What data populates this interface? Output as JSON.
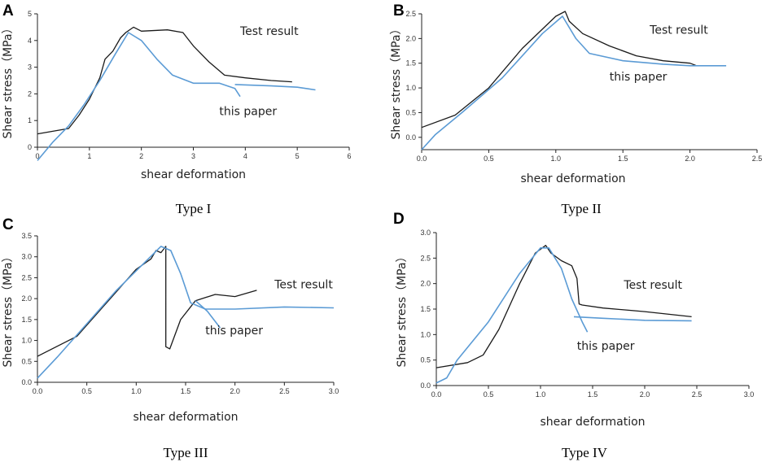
{
  "colors": {
    "test": "#1a1a1a",
    "paper": "#5b9bd5",
    "axis": "#222222"
  },
  "chart_data": [
    {
      "type": "line",
      "panel": "A",
      "caption": "Type I",
      "xlabel": "shear deformation",
      "ylabel": "Shear stress（MPa）",
      "xlim": [
        0,
        6
      ],
      "ylim": [
        0,
        5
      ],
      "xticks": [
        0,
        1,
        2,
        3,
        4,
        5,
        6
      ],
      "yticks": [
        0,
        1,
        2,
        3,
        4,
        5
      ],
      "xtick_labels": [
        "0",
        "1",
        "2",
        "3",
        "4",
        "5",
        "6"
      ],
      "ytick_labels": [
        "0",
        "1",
        "2",
        "3",
        "4",
        "5"
      ],
      "annotations": [
        {
          "text": "Test result",
          "x": 3.9,
          "y": 4.2
        },
        {
          "text": "this paper",
          "x": 3.5,
          "y": 1.2
        }
      ],
      "series": [
        {
          "name": "Test result",
          "x": [
            0,
            0.6,
            0.8,
            1.0,
            1.2,
            1.3,
            1.45,
            1.6,
            1.7,
            1.85,
            2.0,
            2.5,
            2.8,
            3.0,
            3.3,
            3.6,
            4.0,
            4.5,
            4.9
          ],
          "y": [
            0.5,
            0.7,
            1.2,
            1.8,
            2.6,
            3.3,
            3.6,
            4.1,
            4.3,
            4.5,
            4.35,
            4.4,
            4.3,
            3.8,
            3.2,
            2.7,
            2.6,
            2.5,
            2.45
          ]
        },
        {
          "name": "this paper",
          "x": [
            0,
            0.3,
            0.6,
            0.9,
            1.2,
            1.5,
            1.75,
            2.0,
            2.3,
            2.6,
            3.0,
            3.5,
            3.8,
            3.9
          ],
          "y": [
            -0.5,
            0.2,
            0.8,
            1.6,
            2.5,
            3.5,
            4.3,
            4.0,
            3.3,
            2.7,
            2.4,
            2.4,
            2.2,
            1.9
          ]
        },
        {
          "name": "this paper",
          "x": [
            3.8,
            4.5,
            5.0,
            5.35
          ],
          "y": [
            2.35,
            2.3,
            2.25,
            2.15
          ]
        }
      ]
    },
    {
      "type": "line",
      "panel": "B",
      "caption": "Type II",
      "xlabel": "shear deformation",
      "ylabel": "Shear stress（MPa）",
      "xlim": [
        0,
        2.5
      ],
      "ylim": [
        -0.25,
        2.5
      ],
      "xticks": [
        0,
        0.5,
        1.0,
        1.5,
        2.0,
        2.5
      ],
      "yticks": [
        0,
        0.5,
        1.0,
        1.5,
        2.0,
        2.5
      ],
      "xtick_labels": [
        "0.0",
        "0.5",
        "1.0",
        "1.5",
        "2.0",
        "2.5"
      ],
      "ytick_labels": [
        "0.0",
        "0.5",
        "1.0",
        "1.5",
        "2.0",
        "2.5"
      ],
      "annotations": [
        {
          "text": "Test result",
          "x": 1.7,
          "y": 2.1
        },
        {
          "text": "this paper",
          "x": 1.4,
          "y": 1.15
        }
      ],
      "series": [
        {
          "name": "Test result",
          "x": [
            0,
            0.25,
            0.5,
            0.75,
            1.0,
            1.07,
            1.1,
            1.2,
            1.4,
            1.6,
            1.8,
            2.0,
            2.05
          ],
          "y": [
            0.2,
            0.45,
            1.0,
            1.8,
            2.45,
            2.55,
            2.35,
            2.1,
            1.85,
            1.65,
            1.55,
            1.5,
            1.45
          ]
        },
        {
          "name": "this paper",
          "x": [
            0,
            0.1,
            0.3,
            0.6,
            0.9,
            1.05,
            1.15,
            1.25,
            1.5,
            1.8,
            2.0,
            2.27
          ],
          "y": [
            -0.25,
            0.05,
            0.5,
            1.2,
            2.1,
            2.45,
            2.0,
            1.7,
            1.55,
            1.48,
            1.45,
            1.45
          ]
        }
      ]
    },
    {
      "type": "line",
      "panel": "C",
      "caption": "Type III",
      "xlabel": "shear deformation",
      "ylabel": "Shear stress（MPa）",
      "xlim": [
        0,
        3.0
      ],
      "ylim": [
        0,
        3.5
      ],
      "xticks": [
        0,
        0.5,
        1.0,
        1.5,
        2.0,
        2.5,
        3.0
      ],
      "yticks": [
        0,
        0.5,
        1.0,
        1.5,
        2.0,
        2.5,
        3.0,
        3.5
      ],
      "xtick_labels": [
        "0.0",
        "0.5",
        "1.0",
        "1.5",
        "2.0",
        "2.5",
        "3.0"
      ],
      "ytick_labels": [
        "0.0",
        "0.5",
        "1.0",
        "1.5",
        "2.0",
        "2.5",
        "3.0",
        "3.5"
      ],
      "annotations": [
        {
          "text": "Test result",
          "x": 2.4,
          "y": 2.25
        },
        {
          "text": "this paper",
          "x": 1.7,
          "y": 1.15
        }
      ],
      "series": [
        {
          "name": "Test result",
          "x": [
            0,
            0.4,
            0.7,
            1.0,
            1.15,
            1.2,
            1.25,
            1.3,
            1.3,
            1.34,
            1.45,
            1.6,
            1.8,
            2.0,
            2.22
          ],
          "y": [
            0.62,
            1.1,
            1.9,
            2.7,
            2.95,
            3.15,
            3.1,
            3.25,
            0.85,
            0.8,
            1.5,
            1.95,
            2.1,
            2.05,
            2.2
          ]
        },
        {
          "name": "this paper",
          "x": [
            0,
            0.2,
            0.5,
            0.8,
            1.1,
            1.25,
            1.35,
            1.45,
            1.55,
            1.7,
            1.85,
            2.0,
            2.5,
            3.0
          ],
          "y": [
            0.1,
            0.6,
            1.4,
            2.2,
            2.9,
            3.25,
            3.15,
            2.6,
            1.9,
            1.75,
            1.75,
            1.75,
            1.8,
            1.78
          ]
        },
        {
          "name": "this paper",
          "x": [
            1.6,
            1.72,
            1.85
          ],
          "y": [
            1.95,
            1.7,
            1.3
          ]
        }
      ]
    },
    {
      "type": "line",
      "panel": "D",
      "caption": "Type IV",
      "xlabel": "shear deformation",
      "ylabel": "Shear stress（MPa）",
      "xlim": [
        0,
        3.0
      ],
      "ylim": [
        0,
        3.0
      ],
      "xticks": [
        0,
        0.5,
        1.0,
        1.5,
        2.0,
        2.5,
        3.0
      ],
      "yticks": [
        0,
        0.5,
        1.0,
        1.5,
        2.0,
        2.5,
        3.0
      ],
      "xtick_labels": [
        "0.0",
        "0.5",
        "1.0",
        "1.5",
        "2.0",
        "2.5",
        "3.0"
      ],
      "ytick_labels": [
        "0.0",
        "0.5",
        "1.0",
        "1.5",
        "2.0",
        "2.5",
        "3.0"
      ],
      "annotations": [
        {
          "text": "Test result",
          "x": 1.8,
          "y": 1.9
        },
        {
          "text": "this paper",
          "x": 1.35,
          "y": 0.7
        }
      ],
      "series": [
        {
          "name": "Test result",
          "x": [
            0,
            0.3,
            0.45,
            0.6,
            0.8,
            0.95,
            1.05,
            1.1,
            1.2,
            1.3,
            1.35,
            1.37,
            1.4,
            1.6,
            2.0,
            2.45
          ],
          "y": [
            0.35,
            0.45,
            0.6,
            1.1,
            2.0,
            2.6,
            2.75,
            2.6,
            2.45,
            2.35,
            2.1,
            1.6,
            1.58,
            1.52,
            1.45,
            1.35
          ]
        },
        {
          "name": "this paper",
          "x": [
            0,
            0.1,
            0.2,
            0.5,
            0.8,
            1.0,
            1.08,
            1.2,
            1.3,
            1.4,
            1.45
          ],
          "y": [
            0.05,
            0.15,
            0.5,
            1.25,
            2.2,
            2.7,
            2.7,
            2.3,
            1.7,
            1.25,
            1.05
          ]
        },
        {
          "name": "this paper",
          "x": [
            1.32,
            1.6,
            2.0,
            2.45
          ],
          "y": [
            1.35,
            1.32,
            1.28,
            1.27
          ]
        }
      ]
    }
  ]
}
